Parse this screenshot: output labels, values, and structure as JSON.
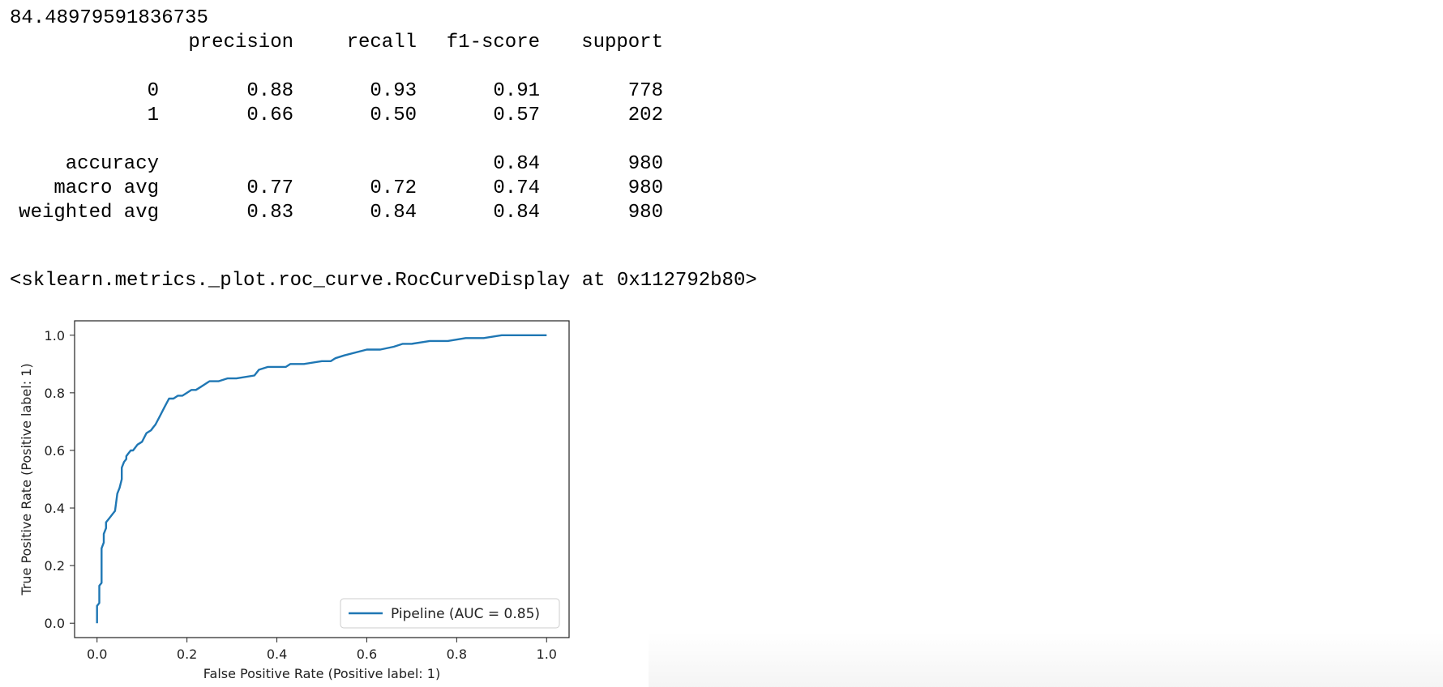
{
  "output": {
    "accuracy_value": "84.48979591836735",
    "report": {
      "headers": [
        "",
        "precision",
        "recall",
        "f1-score",
        "support"
      ],
      "rows": [
        [
          "0",
          "0.88",
          "0.93",
          "0.91",
          "778"
        ],
        [
          "1",
          "0.66",
          "0.50",
          "0.57",
          "202"
        ],
        null,
        [
          "accuracy",
          "",
          "",
          "0.84",
          "980"
        ],
        [
          "macro avg",
          "0.77",
          "0.72",
          "0.74",
          "980"
        ],
        [
          "weighted avg",
          "0.83",
          "0.84",
          "0.84",
          "980"
        ]
      ]
    },
    "repr": "<sklearn.metrics._plot.roc_curve.RocCurveDisplay at 0x112792b80>"
  },
  "chart_data": {
    "type": "line",
    "title": "",
    "xlabel": "False Positive Rate (Positive label: 1)",
    "ylabel": "True Positive Rate (Positive label: 1)",
    "xlim": [
      -0.05,
      1.05
    ],
    "ylim": [
      -0.05,
      1.05
    ],
    "xticks": [
      "0.0",
      "0.2",
      "0.4",
      "0.6",
      "0.8",
      "1.0"
    ],
    "yticks": [
      "0.0",
      "0.2",
      "0.4",
      "0.6",
      "0.8",
      "1.0"
    ],
    "grid": false,
    "legend_position": "lower-right",
    "colors": {
      "line": "#1f77b4"
    },
    "series": [
      {
        "name": "Pipeline (AUC = 0.85)",
        "x": [
          0.0,
          0.0,
          0.005,
          0.005,
          0.01,
          0.01,
          0.015,
          0.015,
          0.02,
          0.02,
          0.025,
          0.03,
          0.035,
          0.04,
          0.045,
          0.05,
          0.055,
          0.055,
          0.06,
          0.065,
          0.065,
          0.07,
          0.075,
          0.08,
          0.085,
          0.09,
          0.1,
          0.11,
          0.12,
          0.125,
          0.13,
          0.14,
          0.15,
          0.16,
          0.17,
          0.18,
          0.19,
          0.2,
          0.21,
          0.22,
          0.23,
          0.24,
          0.25,
          0.27,
          0.29,
          0.31,
          0.35,
          0.36,
          0.38,
          0.42,
          0.43,
          0.46,
          0.5,
          0.52,
          0.53,
          0.55,
          0.6,
          0.63,
          0.66,
          0.68,
          0.7,
          0.74,
          0.78,
          0.82,
          0.86,
          0.9,
          0.94,
          1.0
        ],
        "y": [
          0.0,
          0.06,
          0.07,
          0.13,
          0.14,
          0.26,
          0.28,
          0.31,
          0.33,
          0.35,
          0.36,
          0.37,
          0.38,
          0.39,
          0.45,
          0.47,
          0.5,
          0.54,
          0.56,
          0.57,
          0.58,
          0.59,
          0.6,
          0.6,
          0.61,
          0.62,
          0.63,
          0.66,
          0.67,
          0.68,
          0.69,
          0.72,
          0.75,
          0.78,
          0.78,
          0.79,
          0.79,
          0.8,
          0.81,
          0.81,
          0.82,
          0.83,
          0.84,
          0.84,
          0.85,
          0.85,
          0.86,
          0.88,
          0.89,
          0.89,
          0.9,
          0.9,
          0.91,
          0.91,
          0.92,
          0.93,
          0.95,
          0.95,
          0.96,
          0.97,
          0.97,
          0.98,
          0.98,
          0.99,
          0.99,
          1.0,
          1.0,
          1.0
        ]
      }
    ]
  }
}
